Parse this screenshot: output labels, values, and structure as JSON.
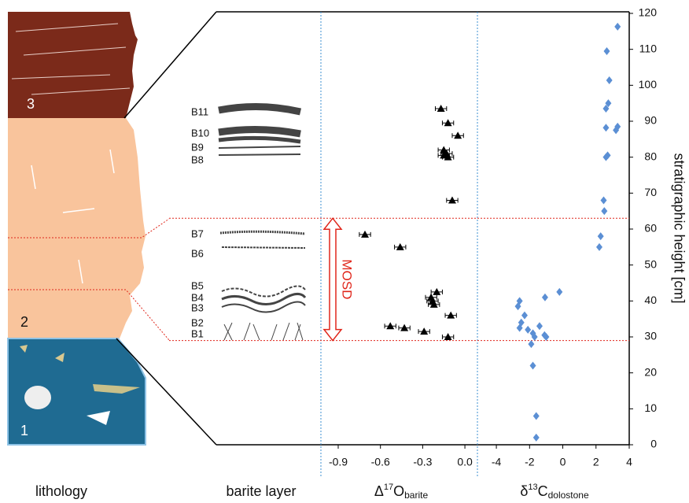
{
  "lithology_label": "lithology",
  "barite_label": "barite layer",
  "units": [
    "3",
    "2",
    "1"
  ],
  "layers": [
    "B11",
    "B10",
    "B9",
    "B8",
    "B7",
    "B6",
    "B5",
    "B4",
    "B3",
    "B2",
    "B1"
  ],
  "chart_data": [
    {
      "type": "scatter",
      "xlabel": {
        "pre": "Δ",
        "sup": "17",
        "mid": "O",
        "sub": "barite"
      },
      "xlim": [
        -1.023,
        0.089
      ],
      "xticks": [
        -0.9,
        -0.6,
        -0.3,
        {
          "value": 0,
          "label": "0.0"
        }
      ],
      "ylim": [
        0,
        120
      ],
      "annotation": {
        "text": "MOSD",
        "from": 29,
        "to": 63
      },
      "series": [
        {
          "color": "#000000",
          "marker": "triangle",
          "x": [
            -0.17,
            -0.12,
            -0.05,
            -0.15,
            -0.13,
            -0.15,
            -0.12,
            -0.09,
            -0.71,
            -0.46,
            -0.2,
            -0.24,
            -0.23,
            -0.22,
            -0.1,
            -0.53,
            -0.43,
            -0.29,
            -0.12
          ],
          "y": [
            93.5,
            89.5,
            86,
            82,
            81,
            80.5,
            80,
            68,
            58.5,
            55,
            42.5,
            41,
            40,
            39,
            36,
            33,
            32.5,
            31.5,
            30
          ],
          "xerr": [
            0.04,
            0.04,
            0.04,
            0.04,
            0.04,
            0.04,
            0.04,
            0.04,
            0.04,
            0.04,
            0.04,
            0.04,
            0.04,
            0.04,
            0.04,
            0.04,
            0.04,
            0.04,
            0.04
          ]
        }
      ]
    },
    {
      "type": "scatter",
      "xlabel": {
        "pre": "δ",
        "sup": "13",
        "mid": "C",
        "sub": "dolostone"
      },
      "xlim": [
        -5.14,
        4
      ],
      "xticks": [
        -4,
        -2,
        0,
        2,
        4
      ],
      "ylim": [
        0,
        120
      ],
      "yticks": [
        0,
        10,
        20,
        30,
        40,
        50,
        60,
        70,
        80,
        90,
        100,
        110,
        120
      ],
      "ylabel": "stratigraphic height [cm]",
      "series": [
        {
          "color": "#5b8fd4",
          "marker": "diamond",
          "x": [
            3.3,
            2.65,
            2.8,
            2.74,
            2.6,
            2.6,
            3.3,
            3.2,
            2.7,
            2.6,
            2.46,
            2.5,
            2.28,
            2.2,
            -0.2,
            -1.07,
            -2.6,
            -2.7,
            -2.3,
            -2.5,
            -2.6,
            -2.1,
            -1.4,
            -1.8,
            -1.7,
            -1.1,
            -1.0,
            -1.9,
            -1.8,
            -1.6,
            -1.6
          ],
          "y": [
            116.3,
            109.5,
            101.4,
            95,
            93.5,
            88.2,
            88.5,
            87.5,
            80.5,
            80,
            68,
            65,
            58,
            55,
            42.5,
            41,
            40,
            38.5,
            36,
            34,
            32.5,
            32,
            33,
            31,
            30,
            30.5,
            30,
            28,
            22,
            8,
            2
          ]
        }
      ]
    }
  ]
}
